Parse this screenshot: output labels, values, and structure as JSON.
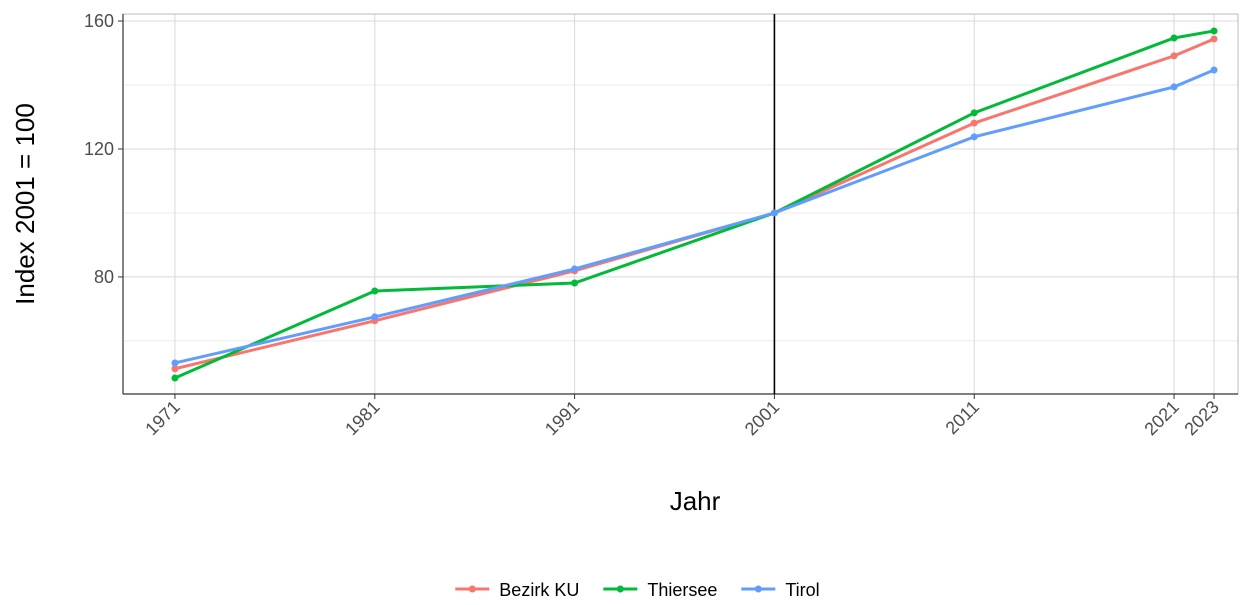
{
  "chart_data": {
    "type": "line",
    "x_label": "Jahr",
    "y_label": "Index 2001 = 100",
    "x": [
      1971,
      1981,
      1991,
      2001,
      2011,
      2021,
      2023
    ],
    "series": [
      {
        "name": "Bezirk KU",
        "color": "#F8766D",
        "values": [
          51.3,
          66.3,
          81.9,
          100,
          128.1,
          149.1,
          154.4
        ]
      },
      {
        "name": "Thiersee",
        "color": "#00BA38",
        "values": [
          48.4,
          75.6,
          78.1,
          100,
          131.3,
          154.7,
          156.9
        ]
      },
      {
        "name": "Tirol",
        "color": "#619CFF",
        "values": [
          53.1,
          67.5,
          82.5,
          100,
          123.8,
          139.4,
          144.7
        ]
      }
    ],
    "xlim": [
      1968.4,
      2024.2
    ],
    "ylim": [
      43.4,
      162.2
    ],
    "xticks": [
      1971,
      1981,
      1991,
      2001,
      2011,
      2021,
      2023
    ],
    "yticks": [
      80,
      120,
      160
    ],
    "y_minor_ticks": [
      60,
      100,
      140
    ],
    "vline": 2001,
    "grid": true,
    "legend_position": "bottom"
  }
}
